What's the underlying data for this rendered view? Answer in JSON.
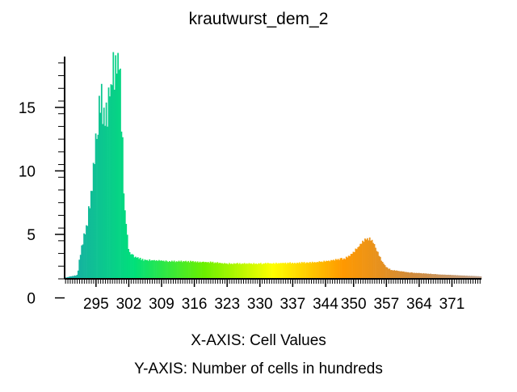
{
  "chart_data": {
    "type": "bar",
    "title": "krautwurst_dem_2",
    "xlabel": "X-AXIS: Cell Values",
    "ylabel": "Y-AXIS: Number of cells in hundreds",
    "xlim": [
      288.3,
      377.3
    ],
    "ylim": [
      0,
      17.5
    ],
    "y_zero_label_value": -1.5,
    "x_ticks": [
      295,
      302,
      309,
      316,
      323,
      330,
      337,
      344,
      350,
      357,
      364,
      371
    ],
    "y_ticks": [
      0,
      5,
      10,
      15
    ],
    "y_tick_values": [
      -1.5,
      3.5,
      8.5,
      13.5
    ],
    "grid": false,
    "x": [
      288.5,
      291.0,
      292.0,
      293.0,
      294.0,
      295.0,
      296.0,
      297.0,
      298.0,
      299.0,
      300.0,
      300.5,
      301.0,
      302.0,
      303.0,
      305.0,
      310.0,
      316.0,
      320.0,
      323.0,
      330.0,
      337.0,
      342.0,
      344.0,
      346.0,
      348.0,
      349.0,
      350.0,
      351.0,
      352.0,
      353.0,
      354.0,
      355.0,
      356.0,
      357.0,
      358.0,
      360.0,
      362.0,
      364.0,
      366.0,
      368.0,
      371.0,
      374.0,
      377.0
    ],
    "values": [
      0.1,
      0.3,
      2.8,
      4.2,
      6.4,
      11.0,
      14.8,
      12.0,
      15.0,
      16.5,
      17.5,
      12.4,
      6.0,
      2.1,
      1.8,
      1.5,
      1.4,
      1.35,
      1.3,
      1.2,
      1.2,
      1.25,
      1.3,
      1.4,
      1.5,
      1.6,
      1.8,
      2.1,
      2.5,
      2.9,
      3.2,
      3.0,
      2.2,
      1.4,
      0.9,
      0.7,
      0.6,
      0.5,
      0.45,
      0.4,
      0.35,
      0.3,
      0.25,
      0.2
    ],
    "colors": {
      "axis": "#000000",
      "bar_gradient": [
        "#1aa8a8",
        "#00e07a",
        "#6af000",
        "#ffff00",
        "#ff9900",
        "#d08a3a",
        "#bfa38f"
      ]
    }
  }
}
